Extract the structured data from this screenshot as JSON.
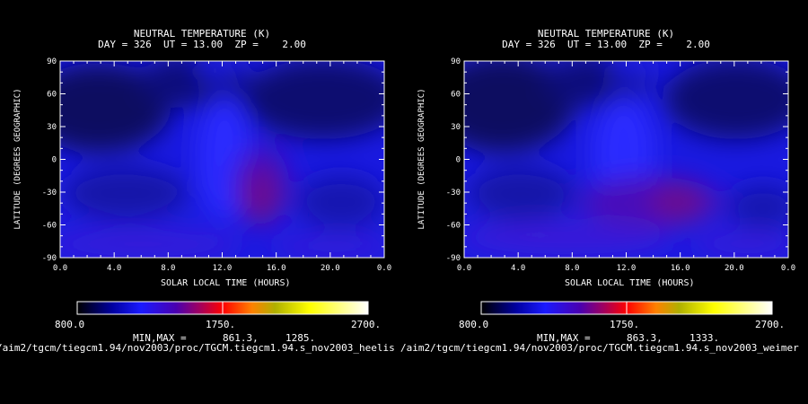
{
  "chart_data": [
    {
      "type": "heatmap",
      "title": "NEUTRAL TEMPERATURE (K)",
      "subtitle": "DAY = 326  UT = 13.00  ZP =    2.00",
      "xlabel": "SOLAR LOCAL TIME (HOURS)",
      "ylabel": "LATITUDE (DEGREES GEOGRAPHIC)",
      "xlim": [
        0,
        24
      ],
      "ylim": [
        -90,
        90
      ],
      "x_ticks": [
        "0.0",
        "4.0",
        "8.0",
        "12.0",
        "16.0",
        "20.0",
        "0.0"
      ],
      "y_ticks": [
        "90",
        "60",
        "30",
        "0",
        "-30",
        "-60",
        "-90"
      ],
      "colorbar": {
        "labels": [
          "800.0",
          "1750.",
          "2700."
        ],
        "range": [
          800,
          2700
        ]
      },
      "minmax_label": "MIN,MAX =",
      "min": "861.3,",
      "max": "1285.",
      "source_path": "/aim2/tgcm/tiegcm1.94/nov2003/proc/TGCM.tiegcm1.94.s_nov2003_heelis"
    },
    {
      "type": "heatmap",
      "title": "NEUTRAL TEMPERATURE (K)",
      "subtitle": "DAY = 326  UT = 13.00  ZP =    2.00",
      "xlabel": "SOLAR LOCAL TIME (HOURS)",
      "ylabel": "LATITUDE (DEGREES GEOGRAPHIC)",
      "xlim": [
        0,
        24
      ],
      "ylim": [
        -90,
        90
      ],
      "x_ticks": [
        "0.0",
        "4.0",
        "8.0",
        "12.0",
        "16.0",
        "20.0",
        "0.0"
      ],
      "y_ticks": [
        "90",
        "60",
        "30",
        "0",
        "-30",
        "-60",
        "-90"
      ],
      "colorbar": {
        "labels": [
          "800.0",
          "1750.",
          "2700."
        ],
        "range": [
          800,
          2700
        ]
      },
      "minmax_label": "MIN,MAX =",
      "min": "863.3,",
      "max": "1333.",
      "source_path": "/aim2/tgcm/tiegcm1.94/nov2003/proc/TGCM.tiegcm1.94.s_nov2003_weimer"
    }
  ],
  "colors": {
    "background": "#000000",
    "text": "#ffffff",
    "colormap": [
      "#000000",
      "#0000a0",
      "#1a1aff",
      "#4a00b0",
      "#a00060",
      "#ff0000",
      "#ff8000",
      "#b0b000",
      "#ffff00",
      "#ffffff"
    ]
  }
}
